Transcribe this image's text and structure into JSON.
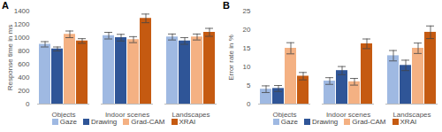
{
  "chart_data": [
    {
      "type": "bar",
      "title": "A",
      "ylabel": "Response time in ms",
      "categories": [
        "Objects",
        "Indoor scenes",
        "Landscapes"
      ],
      "series": [
        {
          "name": "Gaze",
          "color": "#9fb9e2",
          "values": [
            900,
            1030,
            1010
          ],
          "errors": [
            40,
            50,
            45
          ]
        },
        {
          "name": "Drawing",
          "color": "#2f5597",
          "values": [
            830,
            1000,
            950
          ],
          "errors": [
            30,
            50,
            50
          ]
        },
        {
          "name": "Grad-CAM",
          "color": "#f4b183",
          "values": [
            1050,
            970,
            1010
          ],
          "errors": [
            50,
            45,
            45
          ]
        },
        {
          "name": "XRAI",
          "color": "#c55a11",
          "values": [
            950,
            1290,
            1080
          ],
          "errors": [
            35,
            65,
            60
          ]
        }
      ],
      "ylim": [
        0,
        1400
      ],
      "yticks": [
        0,
        200,
        400,
        600,
        800,
        1000,
        1200,
        1400
      ],
      "grid": false,
      "legend": "bottom"
    },
    {
      "type": "bar",
      "title": "B",
      "ylabel": "Error rate in %",
      "categories": [
        "Objects",
        "Indoor scenes",
        "Landscapes"
      ],
      "series": [
        {
          "name": "Gaze",
          "color": "#9fb9e2",
          "values": [
            4,
            6.2,
            13
          ],
          "errors": [
            0.9,
            0.9,
            1.4
          ]
        },
        {
          "name": "Drawing",
          "color": "#2f5597",
          "values": [
            4.2,
            9,
            10.4
          ],
          "errors": [
            0.8,
            1.1,
            1.4
          ]
        },
        {
          "name": "Grad-CAM",
          "color": "#f4b183",
          "values": [
            15,
            6,
            15
          ],
          "errors": [
            1.5,
            0.9,
            1.4
          ]
        },
        {
          "name": "XRAI",
          "color": "#c55a11",
          "values": [
            7.5,
            16.2,
            19.3
          ],
          "errors": [
            1,
            1.3,
            1.7
          ]
        }
      ],
      "ylim": [
        0,
        25
      ],
      "yticks": [
        0,
        5,
        10,
        15,
        20,
        25
      ],
      "grid": false,
      "legend": "bottom"
    }
  ]
}
